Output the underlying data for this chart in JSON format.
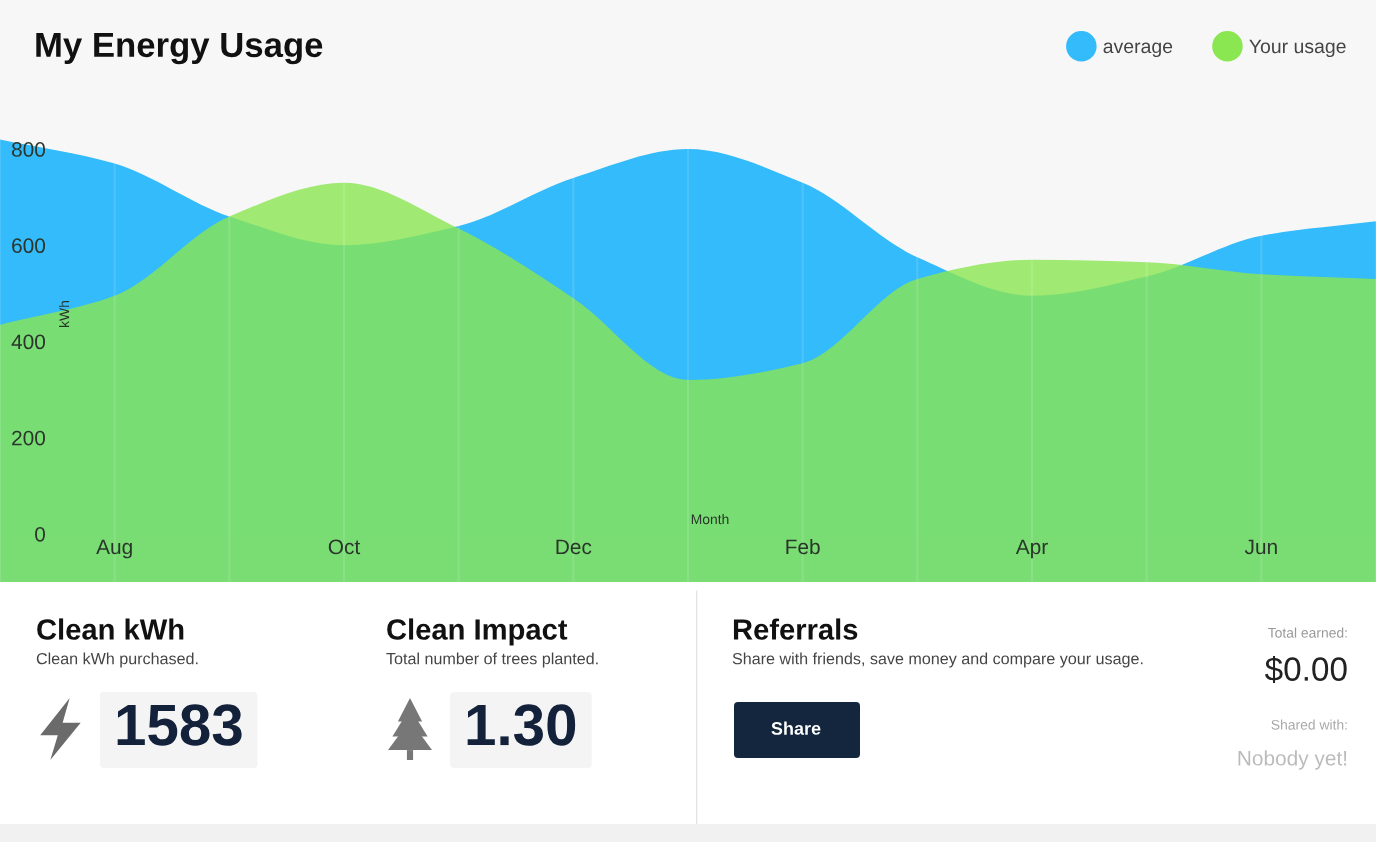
{
  "chart_data": [
    {
      "type": "area",
      "title": "My Energy Usage",
      "xlabel": "Month",
      "ylabel": "kWh",
      "categories": [
        null,
        "Aug",
        null,
        "Oct",
        null,
        "Dec",
        null,
        "Feb",
        null,
        "Apr",
        null,
        "Jun",
        null
      ],
      "series": [
        {
          "name": "average",
          "color": "#33bbfb",
          "values": [
            820,
            770,
            660,
            600,
            640,
            740,
            800,
            730,
            575,
            495,
            535,
            620,
            650
          ]
        },
        {
          "name": "Your usage",
          "color": "#8ae651",
          "values": [
            435,
            495,
            660,
            730,
            635,
            490,
            320,
            355,
            530,
            570,
            565,
            540,
            530
          ]
        }
      ],
      "bands": [
        {
          "axis": "y",
          "from": -100,
          "to": 0,
          "color": "#79dd73"
        }
      ],
      "ylim": [
        -100,
        1110
      ],
      "yticks": [
        0,
        200,
        400,
        600,
        800
      ],
      "grid": "x",
      "legend": "top right"
    },
    {
      "type": "other",
      "title": "Clean kWh",
      "subtitle": "Clean kWh purchased.",
      "annotations": [
        "1583"
      ]
    },
    {
      "type": "other",
      "title": "Clean Impact",
      "subtitle": "Total number of trees planted.",
      "annotations": [
        "1.30"
      ]
    },
    {
      "type": "other",
      "title": "Referrals",
      "subtitle": "Share with friends, save money and compare your usage.",
      "annotations": [
        "Share",
        "Total earned:",
        "$0.00",
        "Shared with:",
        "Nobody yet!"
      ]
    }
  ]
}
